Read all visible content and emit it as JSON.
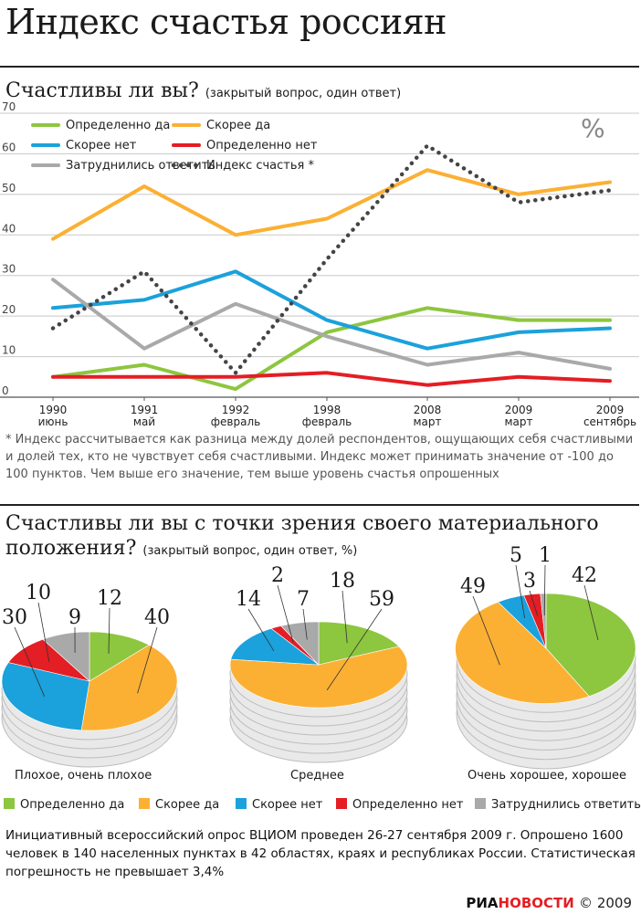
{
  "title": "Индекс счастья россиян",
  "section1": {
    "heading": "Счастливы ли вы?",
    "subheading": "(закрытый вопрос, один ответ)"
  },
  "note": "* Индекс рассчитывается как разница между долей респондентов, ощущающих себя счастливыми и долей тех, кто не чувствует себя счастливыми. Индекс может принимать значение от -100 до 100 пунктов. Чем выше его значение, тем выше уровень счастья опрошенных",
  "section2": {
    "heading_line1": "Счастливы ли вы с точки зрения своего материального",
    "heading_line2": "положения?",
    "subheading": "(закрытый вопрос, один ответ, %)"
  },
  "bottom_legend": [
    "Определенно да",
    "Скорее да",
    "Скорее нет",
    "Определенно нет",
    "Затруднились ответить"
  ],
  "footer": "Инициативный всероссийский опрос ВЦИОМ проведен 26-27 сентября 2009 г. Опрошено 1600 человек в 140 населенных пунктах в 42 областях, краях и республиках России. Статистическая погрешность не превышает 3,4%",
  "brand": {
    "part1": "РИА",
    "part2": "НОВОСТИ",
    "copyright": "© 2009"
  },
  "colors": {
    "definitely_yes": "#8dc63f",
    "rather_yes": "#fbb034",
    "rather_no": "#1ba1db",
    "definitely_no": "#e31e24",
    "undecided": "#a9a9a9",
    "index": "#444444"
  },
  "chart_data": [
    {
      "type": "line",
      "unit_label": "%",
      "x_years": [
        "1990",
        "1991",
        "1992",
        "1998",
        "2008",
        "2009",
        "2009"
      ],
      "x_months": [
        "июнь",
        "май",
        "февраль",
        "февраль",
        "март",
        "март",
        "сентябрь"
      ],
      "ylim": [
        0,
        70
      ],
      "yticks": [
        0,
        10,
        20,
        30,
        40,
        50,
        60,
        70
      ],
      "grid": true,
      "legend_position": "top-left",
      "series": [
        {
          "name": "Определенно да",
          "color_key": "definitely_yes",
          "dashed": false,
          "values": [
            5,
            8,
            2,
            16,
            22,
            19,
            19
          ]
        },
        {
          "name": "Скорее да",
          "color_key": "rather_yes",
          "dashed": false,
          "values": [
            39,
            52,
            40,
            44,
            56,
            50,
            53
          ]
        },
        {
          "name": "Скорее нет",
          "color_key": "rather_no",
          "dashed": false,
          "values": [
            22,
            24,
            31,
            19,
            12,
            16,
            17
          ]
        },
        {
          "name": "Определенно нет",
          "color_key": "definitely_no",
          "dashed": false,
          "values": [
            5,
            5,
            5,
            6,
            3,
            5,
            4
          ]
        },
        {
          "name": "Затруднились ответить",
          "color_key": "undecided",
          "dashed": false,
          "values": [
            29,
            12,
            23,
            15,
            8,
            11,
            7
          ]
        },
        {
          "name": "Индекс счастья *",
          "color_key": "index",
          "dashed": true,
          "values": [
            17,
            31,
            6,
            34,
            62,
            48,
            51
          ]
        }
      ]
    },
    {
      "type": "pie",
      "label": "Плохое, очень плохое",
      "slices": [
        {
          "name": "Определенно да",
          "value": 12
        },
        {
          "name": "Скорее да",
          "value": 40
        },
        {
          "name": "Скорее нет",
          "value": 30
        },
        {
          "name": "Определенно нет",
          "value": 10
        },
        {
          "name": "Затруднились ответить",
          "value": 9
        }
      ]
    },
    {
      "type": "pie",
      "label": "Среднее",
      "slices": [
        {
          "name": "Определенно да",
          "value": 18
        },
        {
          "name": "Скорее да",
          "value": 59
        },
        {
          "name": "Скорее нет",
          "value": 14
        },
        {
          "name": "Определенно нет",
          "value": 2
        },
        {
          "name": "Затруднились ответить",
          "value": 7
        }
      ]
    },
    {
      "type": "pie",
      "label": "Очень хорошее, хорошее",
      "slices": [
        {
          "name": "Определенно да",
          "value": 42
        },
        {
          "name": "Скорее да",
          "value": 49
        },
        {
          "name": "Скорее нет",
          "value": 5
        },
        {
          "name": "Определенно нет",
          "value": 3
        },
        {
          "name": "Затруднились ответить",
          "value": 1
        }
      ]
    }
  ]
}
